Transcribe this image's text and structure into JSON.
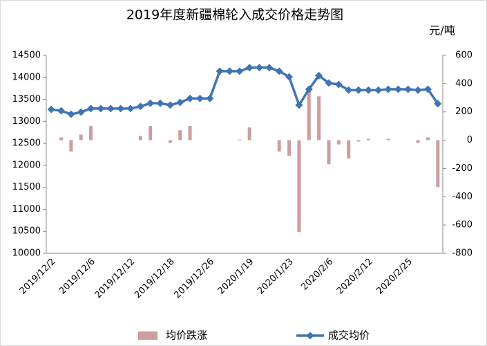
{
  "chart_data": {
    "type": "combo",
    "title": "2019年度新疆棉轮入成交价格走势图",
    "y2_unit": "元/吨",
    "categories": [
      "2019/12/2",
      null,
      null,
      null,
      "2019/12/6",
      null,
      null,
      null,
      "2019/12/12",
      null,
      null,
      null,
      "2019/12/18",
      null,
      null,
      null,
      "2019/12/26",
      null,
      null,
      null,
      "2020/1/19",
      null,
      null,
      null,
      "2020/1/23",
      null,
      null,
      null,
      "2020/2/6",
      null,
      null,
      null,
      "2020/2/12",
      null,
      null,
      null,
      "2020/2/25",
      null,
      null,
      null
    ],
    "series": [
      {
        "name": "均价跌涨",
        "type": "bar",
        "axis": "y2",
        "color": "#cc9e9e",
        "values": [
          0,
          20,
          -80,
          40,
          100,
          0,
          0,
          0,
          0,
          30,
          100,
          0,
          -20,
          70,
          100,
          0,
          0,
          0,
          0,
          5,
          90,
          0,
          0,
          -80,
          -110,
          -650,
          355,
          310,
          -170,
          -30,
          -130,
          -10,
          10,
          0,
          10,
          0,
          0,
          -20,
          20,
          -330
        ]
      },
      {
        "name": "成交均价",
        "type": "line",
        "axis": "y",
        "color": "#3f74b4",
        "values": [
          13270,
          13240,
          13160,
          13210,
          13290,
          13290,
          13290,
          13290,
          13290,
          13340,
          13410,
          13410,
          13370,
          13430,
          13520,
          13520,
          13520,
          14140,
          14140,
          14140,
          14220,
          14220,
          14220,
          14140,
          14010,
          13370,
          13730,
          14040,
          13870,
          13840,
          13710,
          13710,
          13710,
          13710,
          13730,
          13730,
          13730,
          13710,
          13730,
          13400
        ]
      }
    ],
    "ylim": [
      10000,
      14500
    ],
    "yticks": [
      10000,
      10500,
      11000,
      11500,
      12000,
      12500,
      13000,
      13500,
      14000,
      14500
    ],
    "y2lim": [
      -800,
      600
    ],
    "y2ticks": [
      -800,
      -600,
      -400,
      -200,
      0,
      200,
      400,
      600
    ],
    "grid": false
  }
}
